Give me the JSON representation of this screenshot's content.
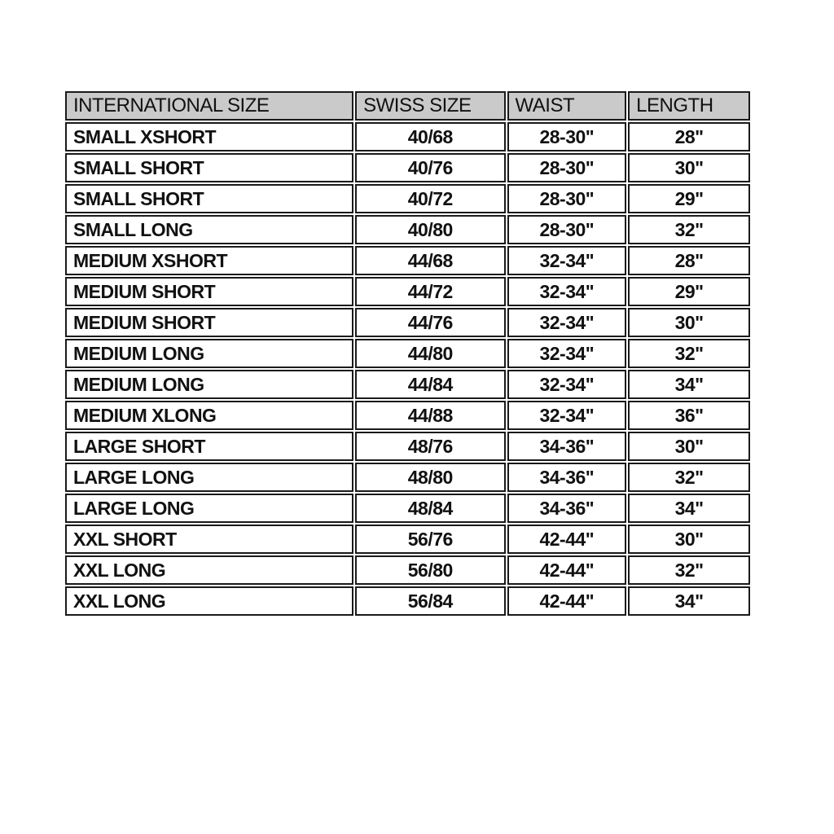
{
  "colors": {
    "header_bg": "#cacaca",
    "border": "#1a1a1a",
    "text": "#111111",
    "page_bg": "#ffffff"
  },
  "table": {
    "headers": [
      "INTERNATIONAL SIZE",
      "SWISS SIZE",
      "WAIST",
      "LENGTH"
    ],
    "rows": [
      [
        "SMALL XSHORT",
        "40/68",
        "28-30\"",
        "28\""
      ],
      [
        "SMALL SHORT",
        "40/76",
        "28-30\"",
        "30\""
      ],
      [
        "SMALL SHORT",
        "40/72",
        "28-30\"",
        "29\""
      ],
      [
        "SMALL LONG",
        "40/80",
        "28-30\"",
        "32\""
      ],
      [
        "MEDIUM XSHORT",
        "44/68",
        "32-34\"",
        "28\""
      ],
      [
        "MEDIUM SHORT",
        "44/72",
        "32-34\"",
        "29\""
      ],
      [
        "MEDIUM SHORT",
        "44/76",
        "32-34\"",
        "30\""
      ],
      [
        "MEDIUM LONG",
        "44/80",
        "32-34\"",
        "32\""
      ],
      [
        "MEDIUM LONG",
        "44/84",
        "32-34\"",
        "34\""
      ],
      [
        "MEDIUM XLONG",
        "44/88",
        "32-34\"",
        "36\""
      ],
      [
        "LARGE SHORT",
        "48/76",
        "34-36\"",
        "30\""
      ],
      [
        "LARGE LONG",
        "48/80",
        "34-36\"",
        "32\""
      ],
      [
        "LARGE LONG",
        "48/84",
        "34-36\"",
        "34\""
      ],
      [
        "XXL SHORT",
        "56/76",
        "42-44\"",
        "30\""
      ],
      [
        "XXL LONG",
        "56/80",
        "42-44\"",
        "32\""
      ],
      [
        "XXL LONG",
        "56/84",
        "42-44\"",
        "34\""
      ]
    ]
  },
  "chart_data": {
    "type": "table",
    "title": "",
    "columns": [
      "INTERNATIONAL SIZE",
      "SWISS SIZE",
      "WAIST",
      "LENGTH"
    ],
    "rows": [
      [
        "SMALL XSHORT",
        "40/68",
        "28-30\"",
        "28\""
      ],
      [
        "SMALL SHORT",
        "40/76",
        "28-30\"",
        "30\""
      ],
      [
        "SMALL SHORT",
        "40/72",
        "28-30\"",
        "29\""
      ],
      [
        "SMALL LONG",
        "40/80",
        "28-30\"",
        "32\""
      ],
      [
        "MEDIUM XSHORT",
        "44/68",
        "32-34\"",
        "28\""
      ],
      [
        "MEDIUM SHORT",
        "44/72",
        "32-34\"",
        "29\""
      ],
      [
        "MEDIUM SHORT",
        "44/76",
        "32-34\"",
        "30\""
      ],
      [
        "MEDIUM LONG",
        "44/80",
        "32-34\"",
        "32\""
      ],
      [
        "MEDIUM LONG",
        "44/84",
        "32-34\"",
        "34\""
      ],
      [
        "MEDIUM XLONG",
        "44/88",
        "32-34\"",
        "36\""
      ],
      [
        "LARGE SHORT",
        "48/76",
        "34-36\"",
        "30\""
      ],
      [
        "LARGE LONG",
        "48/80",
        "34-36\"",
        "32\""
      ],
      [
        "LARGE LONG",
        "48/84",
        "34-36\"",
        "34\""
      ],
      [
        "XXL SHORT",
        "56/76",
        "42-44\"",
        "30\""
      ],
      [
        "XXL LONG",
        "56/80",
        "42-44\"",
        "32\""
      ],
      [
        "XXL LONG",
        "56/84",
        "42-44\"",
        "34\""
      ]
    ]
  }
}
